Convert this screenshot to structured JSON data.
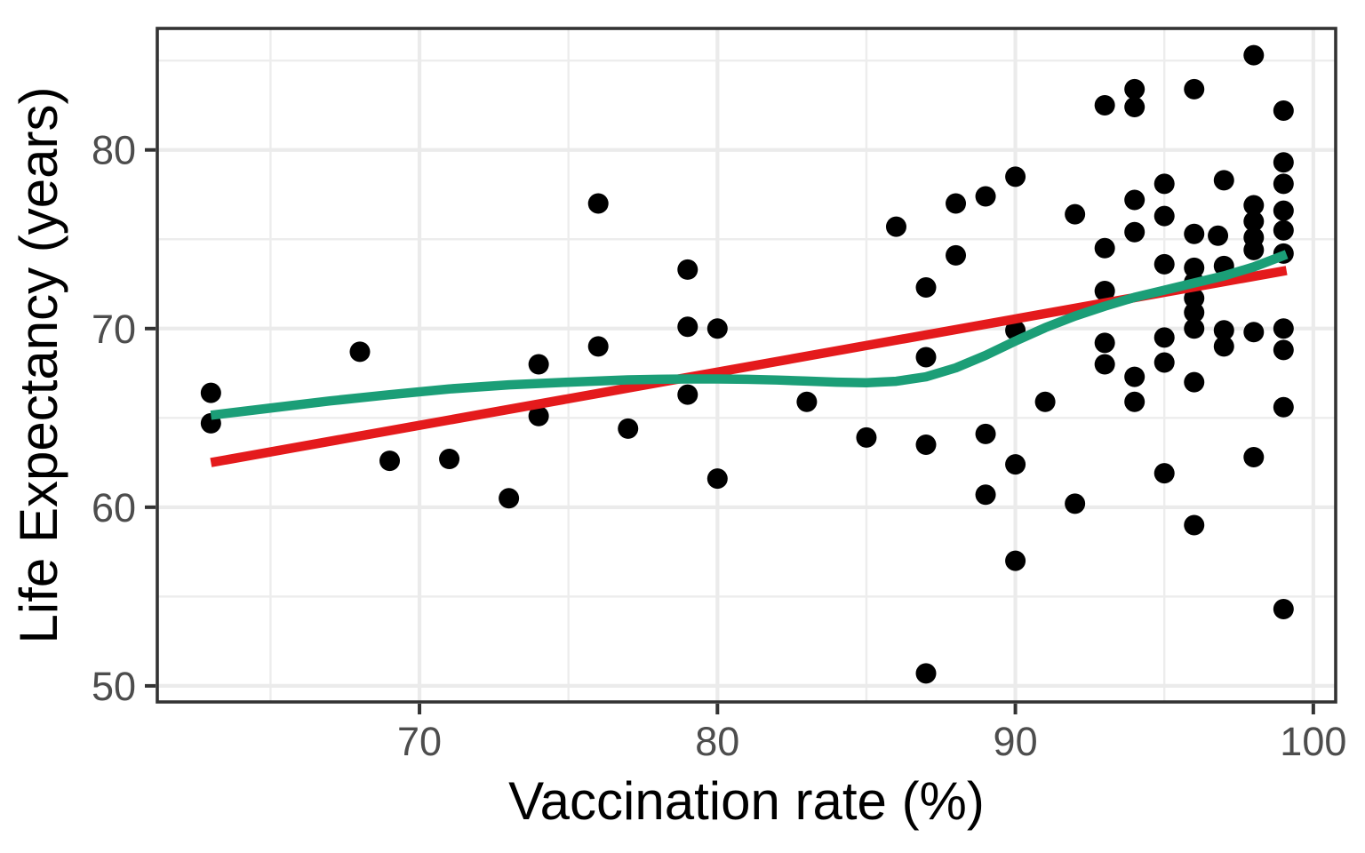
{
  "chart_data": {
    "type": "scatter",
    "title": "",
    "xlabel": "Vaccination rate (%)",
    "ylabel": "Life Expectancy (years)",
    "xlim": [
      61.2,
      100.75
    ],
    "ylim": [
      49.1,
      86.8
    ],
    "x_ticks": [
      "70",
      "80",
      "90",
      "100"
    ],
    "x_tick_values": [
      70,
      80,
      90,
      100
    ],
    "y_ticks": [
      "50",
      "60",
      "70",
      "80"
    ],
    "y_tick_values": [
      50,
      60,
      70,
      80
    ],
    "x_minor": [
      65,
      75,
      85,
      95
    ],
    "y_minor": [
      55,
      65,
      75,
      85
    ],
    "grid": true,
    "legend": "none",
    "colors": {
      "point": "#000000",
      "lm_line": "#e41a1c",
      "loess_line": "#1b9e77",
      "grid_major": "#ebebeb",
      "grid_minor": "#ededed",
      "panel_border": "#333333",
      "tick_mark": "#333333",
      "tick_text": "#4d4d4d",
      "background": "#ffffff"
    },
    "points": [
      [
        63,
        66.4
      ],
      [
        63,
        64.7
      ],
      [
        68,
        68.7
      ],
      [
        69,
        62.6
      ],
      [
        71,
        62.7
      ],
      [
        73,
        60.5
      ],
      [
        74,
        68.0
      ],
      [
        74,
        65.1
      ],
      [
        76,
        77.0
      ],
      [
        76,
        69.0
      ],
      [
        77,
        64.4
      ],
      [
        79,
        73.3
      ],
      [
        79,
        70.1
      ],
      [
        79,
        66.3
      ],
      [
        80,
        70.0
      ],
      [
        80,
        61.6
      ],
      [
        83,
        65.9
      ],
      [
        85,
        63.9
      ],
      [
        86,
        75.7
      ],
      [
        87,
        72.3
      ],
      [
        87,
        68.4
      ],
      [
        87,
        63.5
      ],
      [
        87,
        50.7
      ],
      [
        88,
        77.0
      ],
      [
        88,
        74.1
      ],
      [
        89,
        77.4
      ],
      [
        89,
        64.1
      ],
      [
        89,
        60.7
      ],
      [
        90,
        78.5
      ],
      [
        90,
        69.9
      ],
      [
        90,
        62.4
      ],
      [
        90,
        57.0
      ],
      [
        91,
        65.9
      ],
      [
        92,
        76.4
      ],
      [
        92,
        60.2
      ],
      [
        93,
        82.5
      ],
      [
        93,
        74.5
      ],
      [
        93,
        72.1
      ],
      [
        93,
        69.2
      ],
      [
        93,
        68.0
      ],
      [
        94,
        83.4
      ],
      [
        94,
        82.4
      ],
      [
        94,
        77.2
      ],
      [
        94,
        75.4
      ],
      [
        94,
        67.3
      ],
      [
        94,
        65.9
      ],
      [
        95,
        78.1
      ],
      [
        95,
        76.3
      ],
      [
        95,
        73.6
      ],
      [
        95,
        69.5
      ],
      [
        95,
        68.1
      ],
      [
        95,
        61.9
      ],
      [
        96,
        83.4
      ],
      [
        96,
        75.3
      ],
      [
        96.8,
        75.2
      ],
      [
        96,
        73.4
      ],
      [
        96,
        72.6
      ],
      [
        96,
        71.7
      ],
      [
        96,
        70.9
      ],
      [
        96,
        70.0
      ],
      [
        96,
        67.0
      ],
      [
        96,
        59.0
      ],
      [
        97,
        78.3
      ],
      [
        97,
        73.5
      ],
      [
        97,
        69.9
      ],
      [
        97,
        69.0
      ],
      [
        98,
        85.3
      ],
      [
        98,
        76.9
      ],
      [
        98,
        76.0
      ],
      [
        98,
        75.1
      ],
      [
        98,
        74.4
      ],
      [
        98,
        69.8
      ],
      [
        98,
        62.8
      ],
      [
        99,
        82.2
      ],
      [
        99,
        79.3
      ],
      [
        99,
        78.1
      ],
      [
        99,
        76.6
      ],
      [
        99,
        75.5
      ],
      [
        99,
        74.2
      ],
      [
        99,
        70.0
      ],
      [
        99,
        68.8
      ],
      [
        99,
        65.6
      ],
      [
        99,
        54.3
      ]
    ],
    "series": [
      {
        "name": "lm-fit",
        "color": "#e41a1c",
        "points": [
          [
            63.0,
            62.5
          ],
          [
            99.1,
            73.25
          ]
        ]
      },
      {
        "name": "loess-fit",
        "color": "#1b9e77",
        "points": [
          [
            63.0,
            65.15
          ],
          [
            65,
            65.55
          ],
          [
            67,
            65.95
          ],
          [
            69,
            66.3
          ],
          [
            71,
            66.62
          ],
          [
            73,
            66.85
          ],
          [
            75,
            67.0
          ],
          [
            77,
            67.13
          ],
          [
            78,
            67.16
          ],
          [
            79,
            67.18
          ],
          [
            80,
            67.18
          ],
          [
            81,
            67.16
          ],
          [
            82,
            67.12
          ],
          [
            83,
            67.06
          ],
          [
            84,
            67.0
          ],
          [
            85,
            66.97
          ],
          [
            86,
            67.05
          ],
          [
            87,
            67.3
          ],
          [
            88,
            67.8
          ],
          [
            89,
            68.5
          ],
          [
            90,
            69.3
          ],
          [
            91,
            70.05
          ],
          [
            92,
            70.7
          ],
          [
            93,
            71.25
          ],
          [
            94,
            71.75
          ],
          [
            95,
            72.15
          ],
          [
            96,
            72.55
          ],
          [
            97,
            72.95
          ],
          [
            98,
            73.45
          ],
          [
            99.1,
            74.15
          ]
        ]
      }
    ]
  }
}
